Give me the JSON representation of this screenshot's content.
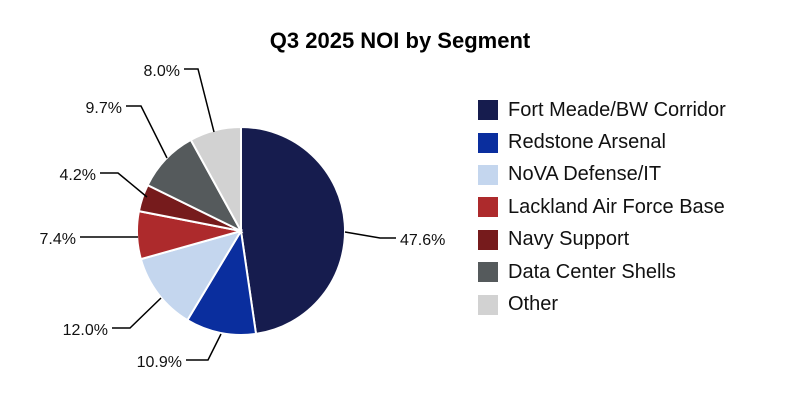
{
  "chart_data": {
    "type": "pie",
    "title": "Q3 2025 NOI by Segment",
    "unit": "%",
    "legend_position": "right",
    "start_angle": "12 o'clock, clockwise",
    "slices": [
      {
        "name": "Fort Meade/BW Corridor",
        "value": 47.6,
        "label": "47.6%",
        "color": "#161c4e"
      },
      {
        "name": "Redstone Arsenal",
        "value": 10.9,
        "label": "10.9%",
        "color": "#0a2e9e"
      },
      {
        "name": "NoVA Defense/IT",
        "value": 12.0,
        "label": "12.0%",
        "color": "#c4d6ee"
      },
      {
        "name": "Lackland Air Force Base",
        "value": 7.4,
        "label": "7.4%",
        "color": "#ad2a2c"
      },
      {
        "name": "Navy Support",
        "value": 4.2,
        "label": "4.2%",
        "color": "#761b1c"
      },
      {
        "name": "Data Center Shells",
        "value": 9.7,
        "label": "9.7%",
        "color": "#555a5c"
      },
      {
        "name": "Other",
        "value": 8.0,
        "label": "8.0%",
        "color": "#d2d2d2"
      }
    ]
  }
}
